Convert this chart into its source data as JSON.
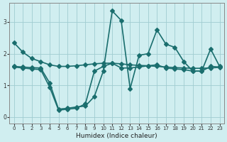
{
  "xlabel": "Humidex (Indice chaleur)",
  "ylabel": "",
  "bg_color": "#d0eef0",
  "grid_color": "#a0ccd0",
  "line_color": "#1a6e6e",
  "xlim": [
    -0.5,
    23.5
  ],
  "ylim": [
    -0.2,
    3.6
  ],
  "xticks": [
    0,
    1,
    2,
    3,
    4,
    5,
    6,
    7,
    8,
    9,
    10,
    11,
    12,
    13,
    14,
    15,
    16,
    17,
    18,
    19,
    20,
    21,
    22,
    23
  ],
  "yticks": [
    0,
    1,
    2,
    3
  ],
  "line1_x": [
    0,
    1,
    2,
    3,
    4,
    5,
    6,
    7,
    8,
    9,
    10,
    11,
    12,
    13,
    14,
    15,
    16,
    17,
    18,
    19,
    20,
    21,
    22,
    23
  ],
  "line1_y": [
    2.35,
    2.05,
    1.85,
    1.75,
    1.65,
    1.6,
    1.6,
    1.62,
    1.65,
    1.68,
    1.7,
    1.7,
    1.68,
    1.65,
    1.63,
    1.62,
    1.6,
    1.58,
    1.56,
    1.55,
    1.54,
    1.54,
    1.55,
    1.57
  ],
  "line2_x": [
    0,
    1,
    2,
    3,
    4,
    5,
    6,
    7,
    8,
    9,
    10,
    11,
    12,
    13,
    14,
    15,
    16,
    17,
    18,
    19,
    20,
    21,
    22,
    23
  ],
  "line2_y": [
    1.6,
    1.58,
    1.56,
    1.55,
    1.08,
    0.25,
    0.28,
    0.32,
    0.35,
    0.65,
    1.45,
    3.35,
    3.05,
    0.9,
    1.95,
    2.0,
    2.75,
    2.3,
    2.2,
    1.75,
    1.45,
    1.45,
    2.15,
    1.6
  ],
  "line3_x": [
    0,
    1,
    2,
    3,
    4,
    5,
    6,
    7,
    8,
    9,
    10,
    11,
    12,
    13,
    14,
    15,
    16,
    17,
    18,
    19,
    20,
    21,
    22,
    23
  ],
  "line3_y": [
    1.58,
    1.55,
    1.52,
    1.5,
    0.95,
    0.22,
    0.25,
    0.28,
    0.42,
    1.45,
    1.6,
    1.7,
    1.55,
    1.55,
    1.58,
    1.62,
    1.65,
    1.55,
    1.52,
    1.5,
    1.45,
    1.45,
    1.6,
    1.58
  ],
  "marker": "D",
  "markersize": 3,
  "linewidth": 1.2
}
